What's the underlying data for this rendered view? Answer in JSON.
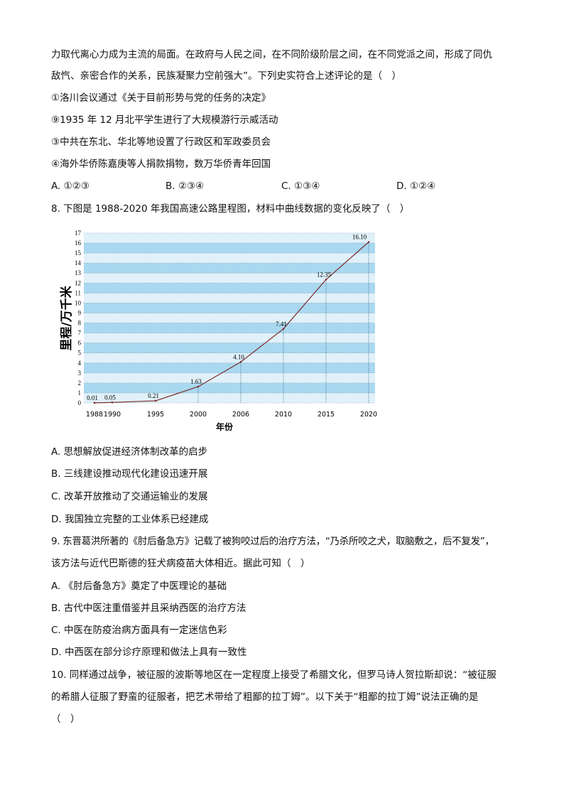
{
  "q7": {
    "lines": [
      "力取代离心力成为主流的局面。在政府与人民之间，在不同阶级阶层之间，在不同党派之间，形成了同仇",
      "敌忾、亲密合作的关系，民族凝聚力空前强大”。下列史实符合上述评论的是（　）"
    ],
    "items": [
      "①洛川会议通过《关于目前形势与党的任务的决定》",
      "⑨1935 年 12 月北平学生进行了大规模游行示威活动",
      "③中共在东北、华北等地设置了行政区和军政委员会",
      "④海外华侨陈嘉庚等人捐款捐物，数万华侨青年回国"
    ],
    "options": [
      "A. ①②③",
      "B. ②③④",
      "C. ①③④",
      "D. ①②④"
    ]
  },
  "q8": {
    "stem": "8. 下图是 1988-2020 年我国高速公路里程图，材料中曲线数据的变化反映了（　）",
    "options": [
      "A. 思想解放促进经济体制改革的启步",
      "B. 三线建设推动现代化建设迅速开展",
      "C. 改革开放推动了交通运输业的发展",
      "D. 我国独立完整的工业体系已经建成"
    ]
  },
  "q9": {
    "lines": [
      "9. 东晋葛洪所著的《肘后备急方》记载了被狗咬过后的治疗方法，“乃杀所咬之犬，取脑敷之，后不复发”，",
      "该方法与近代巴斯德的狂犬病疫苗大体相近。据此可知（　）"
    ],
    "options": [
      "A. 《肘后备急方》奠定了中医理论的基础",
      "B. 古代中医注重借鉴并且采纳西医的治疗方法",
      "C. 中医在防疫治病方面具有一定迷信色彩",
      "D. 中西医在部分诊疗原理和做法上具有一致性"
    ]
  },
  "q10": {
    "lines": [
      "10. 同样通过战争，被征服的波斯等地区在一定程度上接受了希腊文化，但罗马诗人贺拉斯却说：“被征服",
      "的希腊人征服了野蛮的征服者，把艺术带给了粗鄙的拉丁姆”。以下关于“粗鄙的拉丁姆”说法正确的是",
      "（　）"
    ]
  },
  "chart_data": {
    "type": "line",
    "categories": [
      "1988",
      "1990",
      "1995",
      "2000",
      "2006",
      "2010",
      "2015",
      "2020"
    ],
    "values": [
      0.01,
      0.05,
      0.21,
      1.63,
      4.1,
      7.41,
      12.35,
      16.1
    ],
    "data_labels": [
      "0.01",
      "0.05",
      "0.21",
      "1.63",
      "4.10",
      "7.41",
      "12.35",
      "16.10"
    ],
    "xlabel": "年份",
    "ylabel": "里程/万千米",
    "ylim": [
      0,
      17
    ],
    "yticks": [
      0,
      1,
      2,
      3,
      4,
      5,
      6,
      7,
      8,
      9,
      10,
      11,
      12,
      13,
      14,
      15,
      16,
      17
    ],
    "grid": true,
    "colors": {
      "band_dark": "#a9d9f1",
      "band_light": "#e0f1fa",
      "line": "#7a2a2a"
    }
  }
}
